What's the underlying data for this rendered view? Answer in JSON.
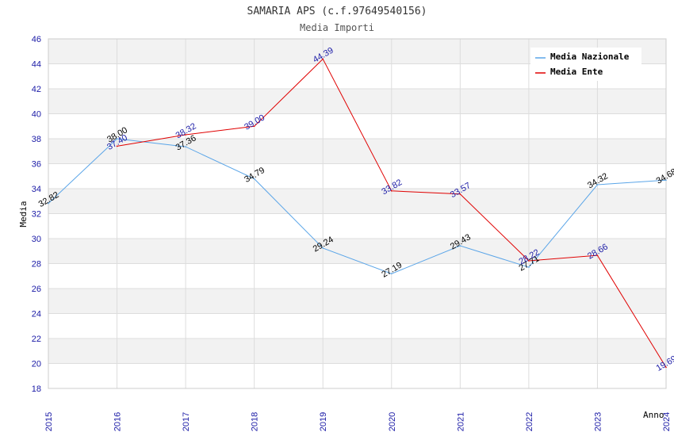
{
  "chart_data": {
    "type": "line",
    "title": "SAMARIA APS (c.f.97649540156)",
    "subtitle": "Media Importi",
    "xlabel": "Anno",
    "ylabel": "Media",
    "ylim": [
      18,
      46
    ],
    "y_ticks": [
      18,
      20,
      22,
      24,
      26,
      28,
      30,
      32,
      34,
      36,
      38,
      40,
      42,
      44,
      46
    ],
    "x": [
      "2015",
      "2016",
      "2017",
      "2018",
      "2019",
      "2020",
      "2021",
      "2022",
      "2023",
      "2024"
    ],
    "legend_position": "top-right",
    "series": [
      {
        "name": "Media Nazionale",
        "color": "#5aa5e8",
        "label_color": "#000000",
        "values": [
          32.82,
          38.0,
          37.36,
          34.79,
          29.24,
          27.19,
          29.43,
          27.71,
          34.32,
          34.68
        ],
        "labels": [
          "32.82",
          "38.00",
          "37.36",
          "34.79",
          "29.24",
          "27.19",
          "29.43",
          "27.71",
          "34.32",
          "34.68"
        ]
      },
      {
        "name": "Media Ente",
        "color": "#e00000",
        "label_color": "#1a1aa6",
        "values": [
          null,
          37.4,
          38.32,
          39.0,
          44.39,
          33.82,
          33.57,
          28.22,
          28.66,
          19.69
        ],
        "labels": [
          null,
          "37.40",
          "38.32",
          "39.00",
          "44.39",
          "33.82",
          "33.57",
          "28.22",
          "28.66",
          "19.69"
        ]
      }
    ]
  }
}
